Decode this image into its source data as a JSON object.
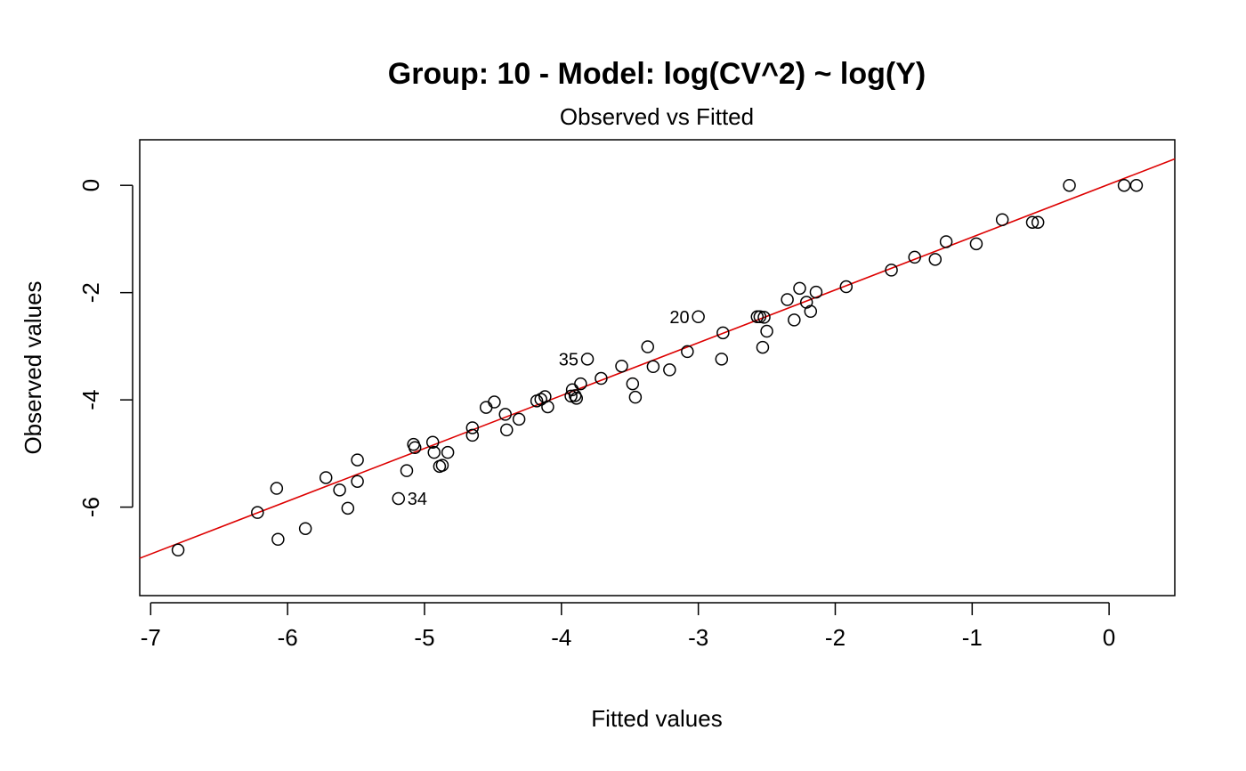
{
  "chart_data": {
    "type": "scatter",
    "title": "Group: 10 - Model: log(CV^2) ~ log(Y)",
    "subtitle": "Observed vs Fitted",
    "xlabel": "Fitted values",
    "ylabel": "Observed values",
    "xlim": [
      -7.08,
      0.48
    ],
    "ylim": [
      -7.65,
      0.85
    ],
    "xticks": [
      -7,
      -6,
      -5,
      -4,
      -3,
      -2,
      -1,
      0
    ],
    "yticks": [
      -6,
      -4,
      -2,
      0
    ],
    "grid": false,
    "point_color": "#000000",
    "line_color": "#dd0000",
    "fit_line": {
      "slope": 0.985,
      "intercept": 0.02
    },
    "points": [
      {
        "x": -6.8,
        "y": -6.8
      },
      {
        "x": -6.22,
        "y": -6.1
      },
      {
        "x": -6.08,
        "y": -5.65
      },
      {
        "x": -6.07,
        "y": -6.6
      },
      {
        "x": -5.87,
        "y": -6.4
      },
      {
        "x": -5.72,
        "y": -5.45
      },
      {
        "x": -5.62,
        "y": -5.68
      },
      {
        "x": -5.56,
        "y": -6.02
      },
      {
        "x": -5.49,
        "y": -5.12
      },
      {
        "x": -5.49,
        "y": -5.52
      },
      {
        "x": -5.19,
        "y": -5.84
      },
      {
        "x": -5.13,
        "y": -5.32
      },
      {
        "x": -5.08,
        "y": -4.83
      },
      {
        "x": -5.07,
        "y": -4.89
      },
      {
        "x": -4.94,
        "y": -4.79
      },
      {
        "x": -4.93,
        "y": -4.98
      },
      {
        "x": -4.89,
        "y": -5.24
      },
      {
        "x": -4.87,
        "y": -5.22
      },
      {
        "x": -4.83,
        "y": -4.98
      },
      {
        "x": -4.65,
        "y": -4.52
      },
      {
        "x": -4.65,
        "y": -4.66
      },
      {
        "x": -4.55,
        "y": -4.14
      },
      {
        "x": -4.49,
        "y": -4.04
      },
      {
        "x": -4.41,
        "y": -4.27
      },
      {
        "x": -4.4,
        "y": -4.56
      },
      {
        "x": -4.31,
        "y": -4.36
      },
      {
        "x": -4.18,
        "y": -4.02
      },
      {
        "x": -4.15,
        "y": -3.99
      },
      {
        "x": -4.12,
        "y": -3.94
      },
      {
        "x": -4.1,
        "y": -4.13
      },
      {
        "x": -3.93,
        "y": -3.93
      },
      {
        "x": -3.92,
        "y": -3.81
      },
      {
        "x": -3.9,
        "y": -3.92
      },
      {
        "x": -3.89,
        "y": -3.97
      },
      {
        "x": -3.86,
        "y": -3.7
      },
      {
        "x": -3.81,
        "y": -3.24
      },
      {
        "x": -3.71,
        "y": -3.6
      },
      {
        "x": -3.56,
        "y": -3.37
      },
      {
        "x": -3.48,
        "y": -3.7
      },
      {
        "x": -3.46,
        "y": -3.95
      },
      {
        "x": -3.37,
        "y": -3.01
      },
      {
        "x": -3.33,
        "y": -3.38
      },
      {
        "x": -3.21,
        "y": -3.44
      },
      {
        "x": -3.08,
        "y": -3.1
      },
      {
        "x": -3.0,
        "y": -2.45
      },
      {
        "x": -2.82,
        "y": -2.75
      },
      {
        "x": -2.83,
        "y": -3.24
      },
      {
        "x": -2.57,
        "y": -2.45
      },
      {
        "x": -2.55,
        "y": -2.45
      },
      {
        "x": -2.52,
        "y": -2.46
      },
      {
        "x": -2.53,
        "y": -3.02
      },
      {
        "x": -2.5,
        "y": -2.72
      },
      {
        "x": -2.35,
        "y": -2.13
      },
      {
        "x": -2.3,
        "y": -2.51
      },
      {
        "x": -2.26,
        "y": -1.92
      },
      {
        "x": -2.21,
        "y": -2.18
      },
      {
        "x": -2.18,
        "y": -2.35
      },
      {
        "x": -2.14,
        "y": -1.99
      },
      {
        "x": -1.92,
        "y": -1.89
      },
      {
        "x": -1.59,
        "y": -1.58
      },
      {
        "x": -1.42,
        "y": -1.34
      },
      {
        "x": -1.27,
        "y": -1.38
      },
      {
        "x": -1.19,
        "y": -1.05
      },
      {
        "x": -0.97,
        "y": -1.09
      },
      {
        "x": -0.78,
        "y": -0.64
      },
      {
        "x": -0.56,
        "y": -0.69
      },
      {
        "x": -0.52,
        "y": -0.69
      },
      {
        "x": -0.29,
        "y": 0.0
      },
      {
        "x": 0.11,
        "y": 0.0
      },
      {
        "x": 0.2,
        "y": 0.0
      }
    ],
    "annotations": [
      {
        "text": "20",
        "x": -3.0,
        "y": -2.45,
        "anchor": "left"
      },
      {
        "text": "35",
        "x": -3.81,
        "y": -3.24,
        "anchor": "left"
      },
      {
        "text": "34",
        "x": -5.19,
        "y": -5.84,
        "anchor": "right"
      }
    ]
  }
}
